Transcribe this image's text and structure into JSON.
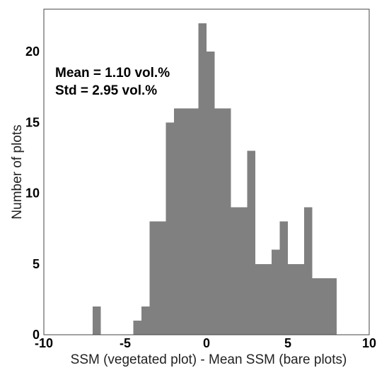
{
  "chart_data": {
    "type": "bar",
    "title": "",
    "xlabel": "SSM (vegetated plot) - Mean SSM (bare plots)",
    "ylabel": "Number of plots",
    "xlim": [
      -10,
      10
    ],
    "ylim": [
      0,
      23
    ],
    "xticks": [
      -10,
      -5,
      0,
      5,
      10
    ],
    "yticks": [
      0,
      5,
      10,
      15,
      20
    ],
    "grid": false,
    "bar_color": "#808080",
    "bin_width": 0.5,
    "bins": [
      {
        "x0": -7.0,
        "x1": -6.5,
        "count": 2
      },
      {
        "x0": -6.5,
        "x1": -6.0,
        "count": 0
      },
      {
        "x0": -6.0,
        "x1": -5.5,
        "count": 0
      },
      {
        "x0": -5.5,
        "x1": -5.0,
        "count": 0
      },
      {
        "x0": -5.0,
        "x1": -4.5,
        "count": 0
      },
      {
        "x0": -4.5,
        "x1": -4.0,
        "count": 1
      },
      {
        "x0": -4.0,
        "x1": -3.5,
        "count": 2
      },
      {
        "x0": -3.5,
        "x1": -3.0,
        "count": 8
      },
      {
        "x0": -3.0,
        "x1": -2.5,
        "count": 8
      },
      {
        "x0": -2.5,
        "x1": -2.0,
        "count": 15
      },
      {
        "x0": -2.0,
        "x1": -1.5,
        "count": 16
      },
      {
        "x0": -1.5,
        "x1": -1.0,
        "count": 16
      },
      {
        "x0": -1.0,
        "x1": -0.5,
        "count": 16
      },
      {
        "x0": -0.5,
        "x1": 0.0,
        "count": 22
      },
      {
        "x0": 0.0,
        "x1": 0.5,
        "count": 20
      },
      {
        "x0": 0.5,
        "x1": 1.0,
        "count": 16
      },
      {
        "x0": 1.0,
        "x1": 1.5,
        "count": 16
      },
      {
        "x0": 1.5,
        "x1": 2.0,
        "count": 9
      },
      {
        "x0": 2.0,
        "x1": 2.5,
        "count": 9
      },
      {
        "x0": 2.5,
        "x1": 3.0,
        "count": 13
      },
      {
        "x0": 3.0,
        "x1": 3.5,
        "count": 5
      },
      {
        "x0": 3.5,
        "x1": 4.0,
        "count": 5
      },
      {
        "x0": 4.0,
        "x1": 4.5,
        "count": 6
      },
      {
        "x0": 4.5,
        "x1": 5.0,
        "count": 8
      },
      {
        "x0": 5.0,
        "x1": 5.5,
        "count": 5
      },
      {
        "x0": 5.5,
        "x1": 6.0,
        "count": 5
      },
      {
        "x0": 6.0,
        "x1": 6.5,
        "count": 9
      },
      {
        "x0": 6.5,
        "x1": 7.0,
        "count": 4
      },
      {
        "x0": 7.0,
        "x1": 7.5,
        "count": 4
      },
      {
        "x0": 7.5,
        "x1": 8.0,
        "count": 4
      }
    ],
    "annotations": [
      "Mean = 1.10 vol.%",
      "Std = 2.95 vol.%"
    ]
  }
}
